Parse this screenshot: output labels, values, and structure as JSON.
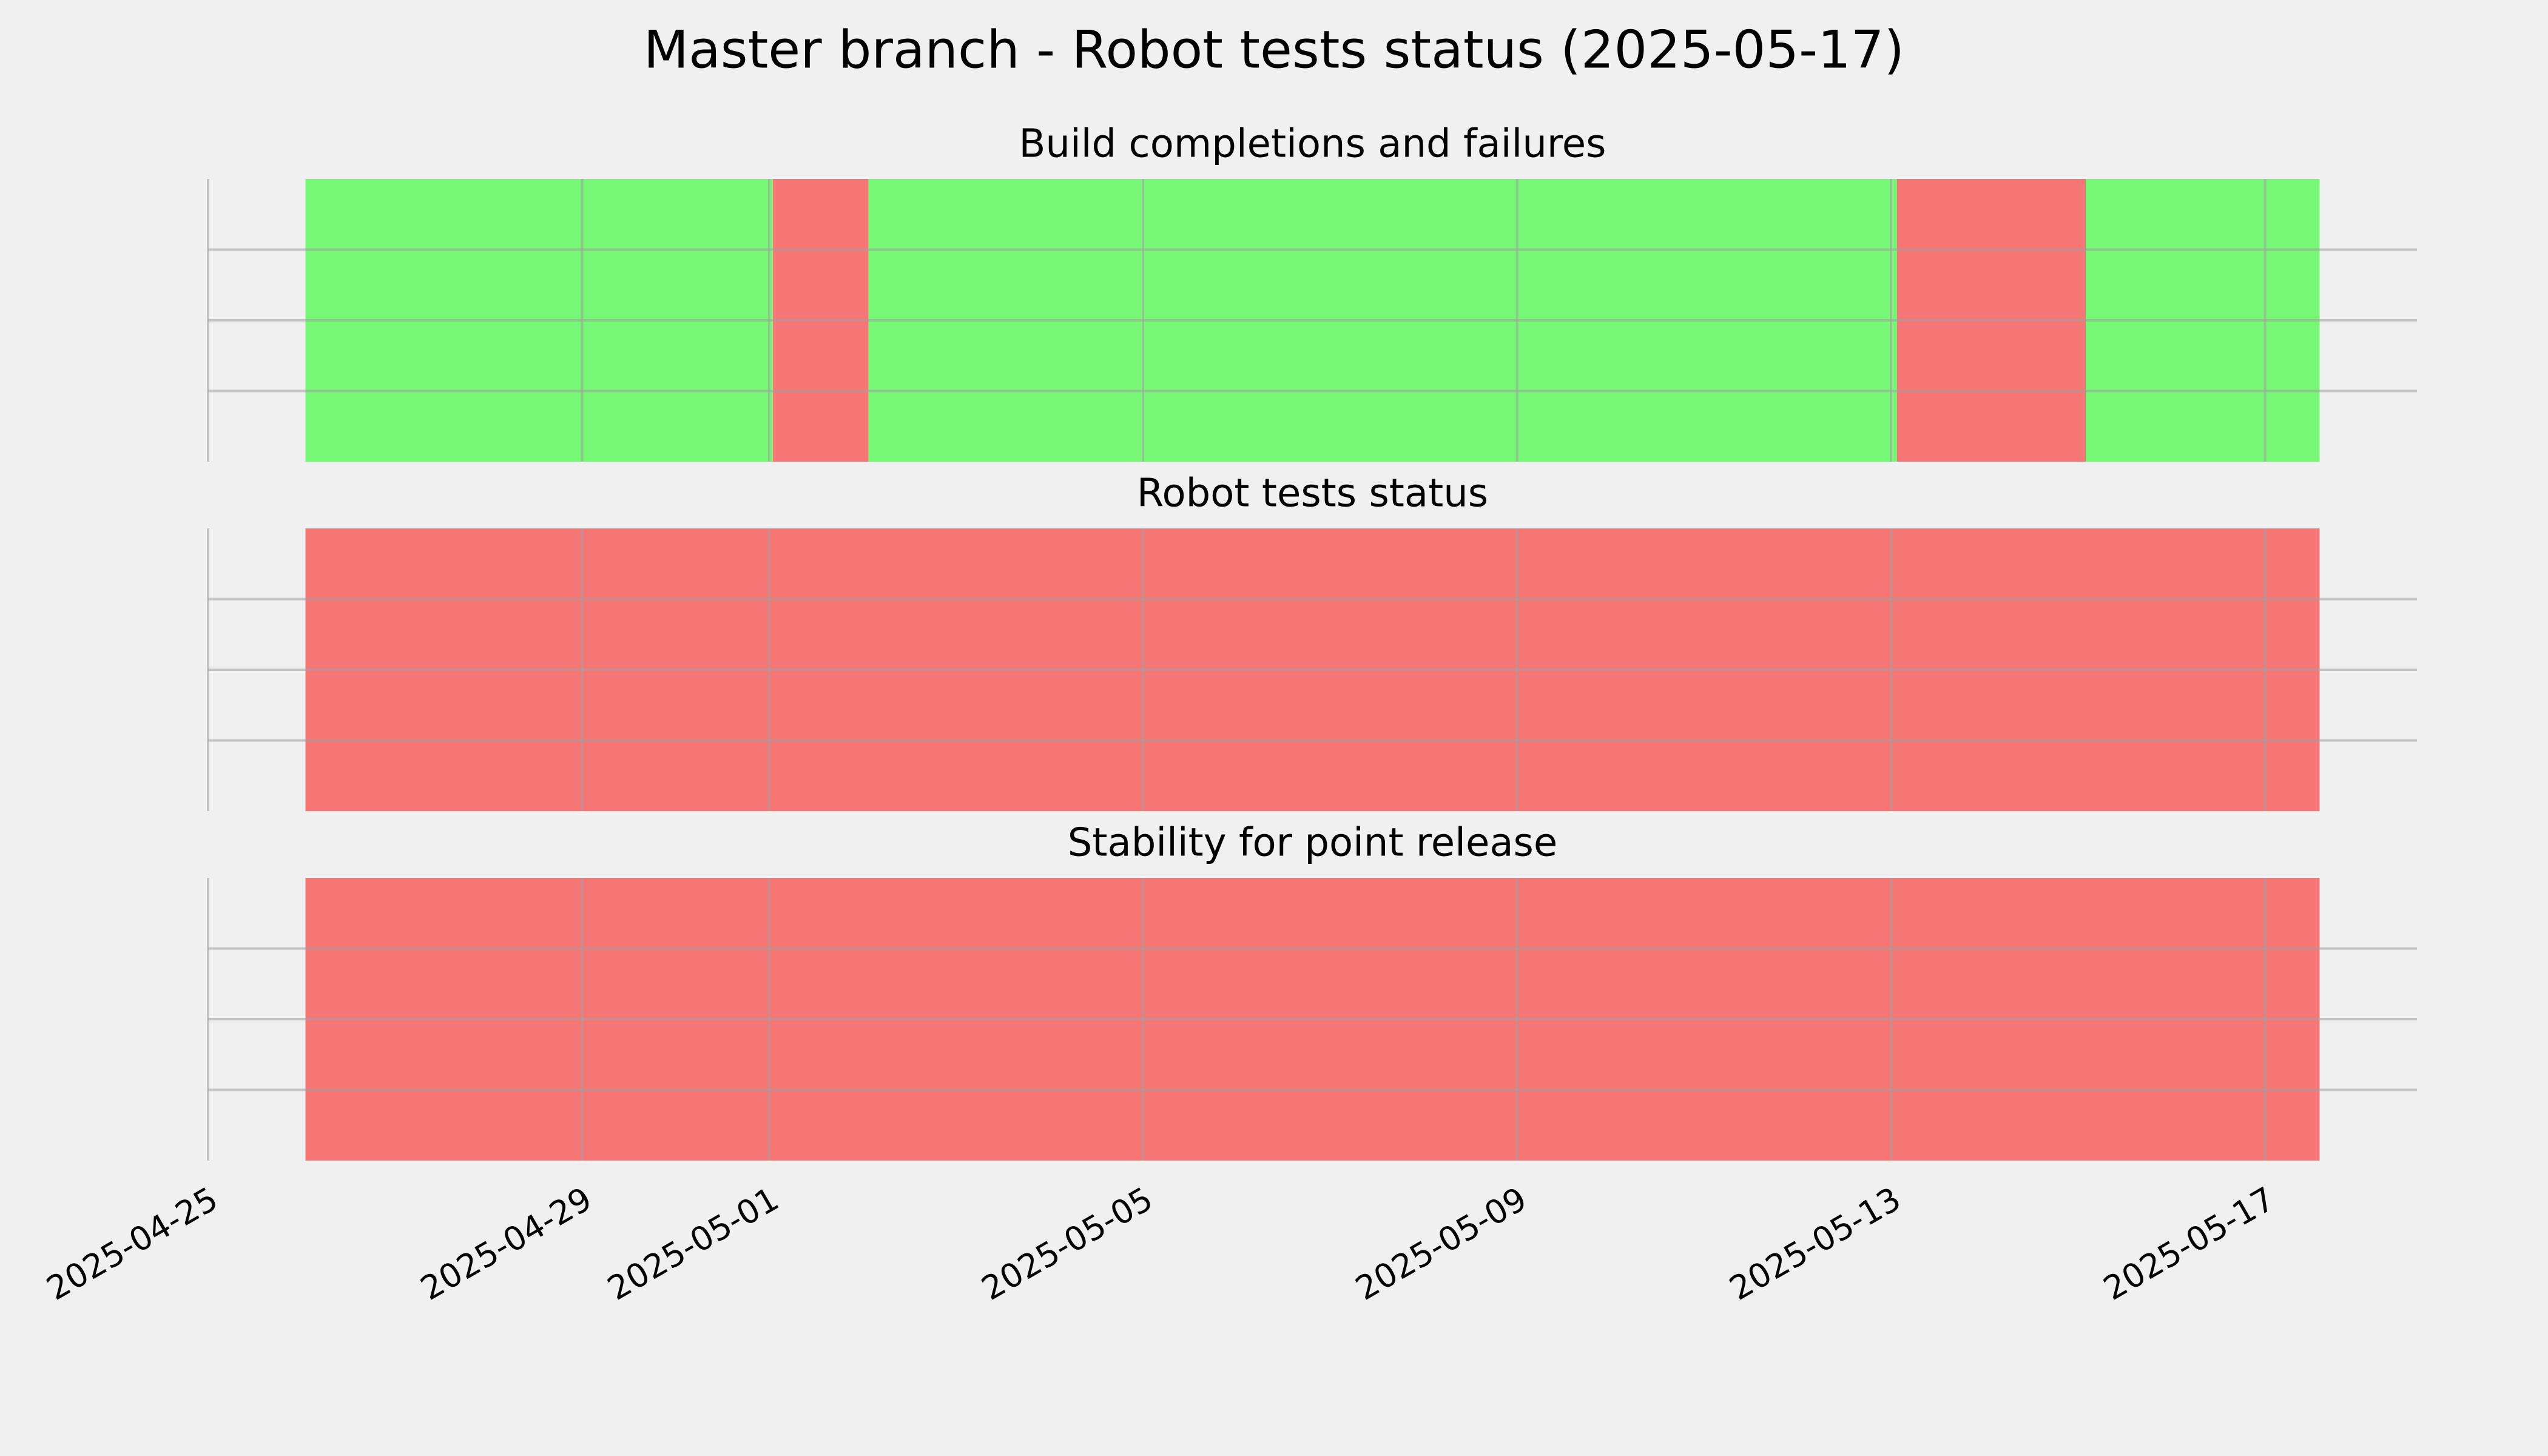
{
  "title": "Master branch - Robot tests status (2025-05-17)",
  "chart_data": [
    {
      "type": "timeline",
      "title": "Build completions and failures",
      "spans": [
        {
          "start": "2025-04-26T01:00",
          "end": "2025-05-01T01:00",
          "color": "#76f776"
        },
        {
          "start": "2025-05-01T01:00",
          "end": "2025-05-02T01:30",
          "color": "#f67676"
        },
        {
          "start": "2025-05-02T01:30",
          "end": "2025-05-13T01:30",
          "color": "#76f776"
        },
        {
          "start": "2025-05-13T01:30",
          "end": "2025-05-15T02:00",
          "color": "#f67676"
        },
        {
          "start": "2025-05-15T02:00",
          "end": "2025-05-17T14:00",
          "color": "#76f776"
        }
      ],
      "ylim": [
        0,
        1
      ],
      "yticks": [
        0.25,
        0.5,
        0.75
      ],
      "grid": true
    },
    {
      "type": "timeline",
      "title": "Robot tests status",
      "spans": [
        {
          "start": "2025-04-26T01:00",
          "end": "2025-05-17T14:00",
          "color": "#f67676"
        }
      ],
      "ylim": [
        0,
        1
      ],
      "yticks": [
        0.25,
        0.5,
        0.75
      ],
      "grid": true
    },
    {
      "type": "timeline",
      "title": "Stability for point release",
      "spans": [
        {
          "start": "2025-04-26T01:00",
          "end": "2025-05-17T14:00",
          "color": "#f67676"
        }
      ],
      "ylim": [
        0,
        1
      ],
      "yticks": [
        0.25,
        0.5,
        0.75
      ],
      "grid": true,
      "xlim": [
        "2025-04-25T00:00",
        "2025-05-18T15:00"
      ],
      "xticks": [
        "2025-04-25",
        "2025-04-29",
        "2025-05-01",
        "2025-05-05",
        "2025-05-09",
        "2025-05-13",
        "2025-05-17"
      ]
    }
  ]
}
